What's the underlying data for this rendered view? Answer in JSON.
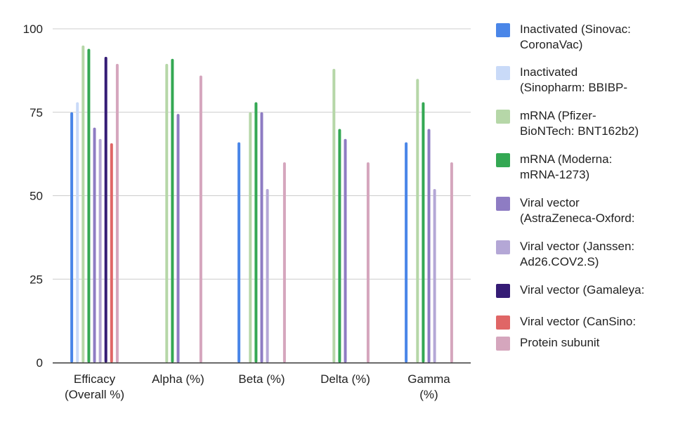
{
  "chart_data": {
    "type": "bar",
    "title": "",
    "xlabel": "",
    "ylabel": "",
    "ylim": [
      0,
      100
    ],
    "yticks": [
      "0",
      "25",
      "50",
      "75",
      "100"
    ],
    "grid": true,
    "legend_position": "right",
    "categories": [
      [
        "Efficacy",
        "(Overall %)"
      ],
      [
        "Alpha (%)"
      ],
      [
        "Beta (%)"
      ],
      [
        "Delta (%)"
      ],
      [
        "Gamma",
        "(%)"
      ]
    ],
    "series": [
      {
        "name": "Inactivated (Sinovac: CoronaVac)",
        "legend_lines": [
          "Inactivated (Sinovac:",
          "CoronaVac)"
        ],
        "color": "#4a86e8",
        "values": [
          75,
          null,
          66,
          null,
          66
        ]
      },
      {
        "name": "Inactivated (Sinopharm: BBIBP-",
        "legend_lines": [
          "Inactivated",
          "(Sinopharm: BBIBP-"
        ],
        "color": "#c9daf8",
        "values": [
          78,
          null,
          null,
          null,
          null
        ]
      },
      {
        "name": "mRNA (Pfizer-BioNTech: BNT162b2)",
        "legend_lines": [
          "mRNA (Pfizer-",
          "BioNTech: BNT162b2)"
        ],
        "color": "#b6d7a8",
        "values": [
          95,
          89.5,
          75,
          88,
          85
        ]
      },
      {
        "name": "mRNA (Moderna: mRNA-1273)",
        "legend_lines": [
          "mRNA (Moderna:",
          "mRNA-1273)"
        ],
        "color": "#34a853",
        "values": [
          94,
          91,
          78,
          70,
          78
        ]
      },
      {
        "name": "Viral vector (AstraZeneca-Oxford:",
        "legend_lines": [
          "Viral vector",
          "(AstraZeneca-Oxford:"
        ],
        "color": "#8e7cc3",
        "values": [
          70.4,
          74.5,
          75,
          67,
          70
        ]
      },
      {
        "name": "Viral vector (Janssen: Ad26.COV2.S)",
        "legend_lines": [
          "Viral vector (Janssen:",
          "Ad26.COV2.S)"
        ],
        "color": "#b4a7d6",
        "values": [
          67,
          null,
          52,
          null,
          52
        ]
      },
      {
        "name": "Viral vector (Gamaleya:",
        "legend_lines": [
          "Viral vector (Gamaleya:"
        ],
        "color": "#351c75",
        "values": [
          91.6,
          null,
          null,
          null,
          null
        ]
      },
      {
        "name": "Viral vector (CanSino:",
        "legend_lines": [
          "Viral vector (CanSino:"
        ],
        "color": "#e06666",
        "values": [
          65.7,
          null,
          null,
          null,
          null
        ]
      },
      {
        "name": "Protein subunit",
        "legend_lines": [
          "Protein subunit"
        ],
        "color": "#d5a6bd",
        "values": [
          89.5,
          86,
          60,
          60,
          60
        ]
      }
    ]
  }
}
